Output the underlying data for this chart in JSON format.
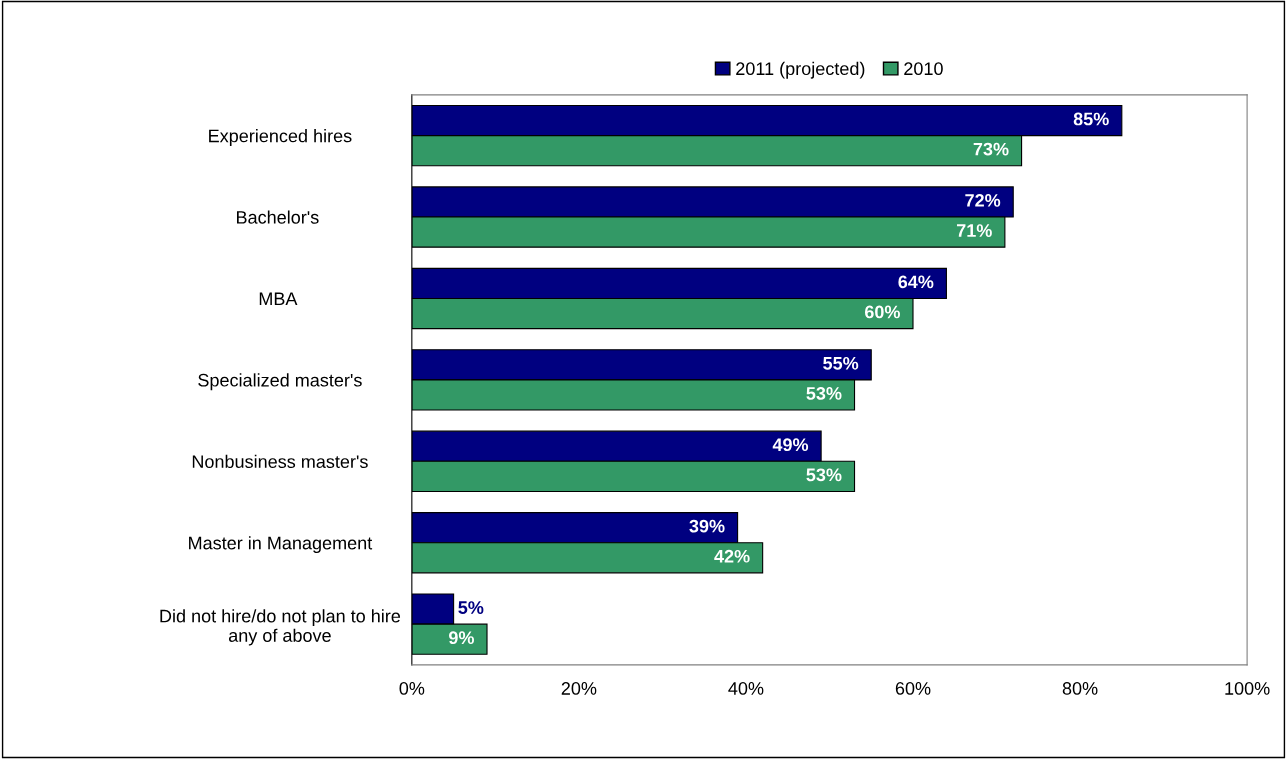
{
  "chart_data": {
    "type": "bar",
    "orientation": "horizontal",
    "categories": [
      "Experienced hires",
      "Bachelor's ",
      "MBA ",
      "Specialized master's",
      "Nonbusiness master's",
      "Master in Management",
      "Did not hire/do not plan to hire\nany of above"
    ],
    "series": [
      {
        "name": "2011 (projected)",
        "color": "#000080",
        "values": [
          85,
          72,
          64,
          55,
          49,
          39,
          5
        ],
        "value_labels": [
          "85%",
          "72%",
          "64%",
          "55%",
          "49%",
          "39%",
          "5%"
        ]
      },
      {
        "name": "2010",
        "color": "#339966",
        "values": [
          73,
          71,
          60,
          53,
          53,
          42,
          9
        ],
        "value_labels": [
          "73%",
          "71%",
          "60%",
          "53%",
          "53%",
          "42%",
          "9%"
        ]
      }
    ],
    "xlim": [
      0,
      100
    ],
    "xticks": [
      {
        "value": 0,
        "label": "0%"
      },
      {
        "value": 20,
        "label": "20%"
      },
      {
        "value": 40,
        "label": "40%"
      },
      {
        "value": 60,
        "label": "60%"
      },
      {
        "value": 80,
        "label": "80%"
      },
      {
        "value": 100,
        "label": "100%"
      }
    ],
    "grid": false,
    "legend": "top"
  }
}
